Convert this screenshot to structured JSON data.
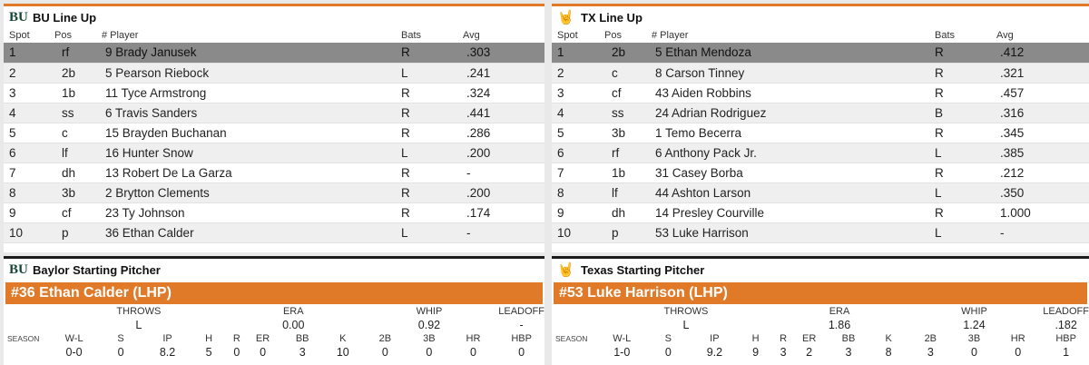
{
  "bu": {
    "title": "BU Line Up",
    "logo": "BU",
    "headers": {
      "spot": "Spot",
      "pos": "Pos",
      "player": "# Player",
      "bats": "Bats",
      "avg": "Avg"
    },
    "rows": [
      {
        "spot": "1",
        "pos": "rf",
        "player": "9 Brady Janusek",
        "bats": "R",
        "avg": ".303"
      },
      {
        "spot": "2",
        "pos": "2b",
        "player": "5 Pearson Riebock",
        "bats": "L",
        "avg": ".241"
      },
      {
        "spot": "3",
        "pos": "1b",
        "player": "11 Tyce Armstrong",
        "bats": "R",
        "avg": ".324"
      },
      {
        "spot": "4",
        "pos": "ss",
        "player": "6 Travis Sanders",
        "bats": "R",
        "avg": ".441"
      },
      {
        "spot": "5",
        "pos": "c",
        "player": "15 Brayden Buchanan",
        "bats": "R",
        "avg": ".286"
      },
      {
        "spot": "6",
        "pos": "lf",
        "player": "16 Hunter Snow",
        "bats": "L",
        "avg": ".200"
      },
      {
        "spot": "7",
        "pos": "dh",
        "player": "13 Robert De La Garza",
        "bats": "R",
        "avg": "-"
      },
      {
        "spot": "8",
        "pos": "3b",
        "player": "2 Brytton Clements",
        "bats": "R",
        "avg": ".200"
      },
      {
        "spot": "9",
        "pos": "cf",
        "player": "23 Ty Johnson",
        "bats": "R",
        "avg": ".174"
      },
      {
        "spot": "10",
        "pos": "p",
        "player": "36 Ethan Calder",
        "bats": "L",
        "avg": "-"
      }
    ]
  },
  "tx": {
    "title": "TX Line Up",
    "logo": "🤘",
    "headers": {
      "spot": "Spot",
      "pos": "Pos",
      "player": "# Player",
      "bats": "Bats",
      "avg": "Avg"
    },
    "rows": [
      {
        "spot": "1",
        "pos": "2b",
        "player": "5 Ethan Mendoza",
        "bats": "R",
        "avg": ".412"
      },
      {
        "spot": "2",
        "pos": "c",
        "player": "8 Carson Tinney",
        "bats": "R",
        "avg": ".321"
      },
      {
        "spot": "3",
        "pos": "cf",
        "player": "43 Aiden Robbins",
        "bats": "R",
        "avg": ".457"
      },
      {
        "spot": "4",
        "pos": "ss",
        "player": "24 Adrian Rodriguez",
        "bats": "B",
        "avg": ".316"
      },
      {
        "spot": "5",
        "pos": "3b",
        "player": "1 Temo Becerra",
        "bats": "R",
        "avg": ".345"
      },
      {
        "spot": "6",
        "pos": "rf",
        "player": "6 Anthony Pack Jr.",
        "bats": "L",
        "avg": ".385"
      },
      {
        "spot": "7",
        "pos": "1b",
        "player": "31 Casey Borba",
        "bats": "R",
        "avg": ".212"
      },
      {
        "spot": "8",
        "pos": "lf",
        "player": "44 Ashton Larson",
        "bats": "L",
        "avg": ".350"
      },
      {
        "spot": "9",
        "pos": "dh",
        "player": "14 Presley Courville",
        "bats": "R",
        "avg": "1.000"
      },
      {
        "spot": "10",
        "pos": "p",
        "player": "53 Luke Harrison",
        "bats": "L",
        "avg": "-"
      }
    ]
  },
  "bu_pitcher": {
    "title": "Baylor Starting Pitcher",
    "name": "#36 Ethan Calder (LHP)",
    "top_labels": [
      "THROWS",
      "ERA",
      "WHIP",
      "LEADOFF"
    ],
    "top_values": [
      "L",
      "0.00",
      "0.92",
      "-"
    ],
    "season_label": "SEASON",
    "stat_labels": [
      "W-L",
      "S",
      "IP",
      "H",
      "R",
      "ER",
      "BB",
      "K",
      "2B",
      "3B",
      "HR",
      "HBP"
    ],
    "stat_values": [
      "0-0",
      "0",
      "8.2",
      "5",
      "0",
      "0",
      "3",
      "10",
      "0",
      "0",
      "0",
      "0"
    ]
  },
  "tx_pitcher": {
    "title": "Texas Starting Pitcher",
    "name": "#53 Luke Harrison (LHP)",
    "top_labels": [
      "THROWS",
      "ERA",
      "WHIP",
      "LEADOFF"
    ],
    "top_values": [
      "L",
      "1.86",
      "1.24",
      ".182"
    ],
    "season_label": "SEASON",
    "stat_labels": [
      "W-L",
      "S",
      "IP",
      "H",
      "R",
      "ER",
      "BB",
      "K",
      "2B",
      "3B",
      "HR",
      "HBP"
    ],
    "stat_values": [
      "1-0",
      "0",
      "9.2",
      "9",
      "3",
      "2",
      "3",
      "8",
      "3",
      "0",
      "0",
      "1"
    ]
  },
  "colors": {
    "accent": "#e07a29",
    "highlight_row": "#8a8a8a",
    "baylor_green": "#154734"
  }
}
